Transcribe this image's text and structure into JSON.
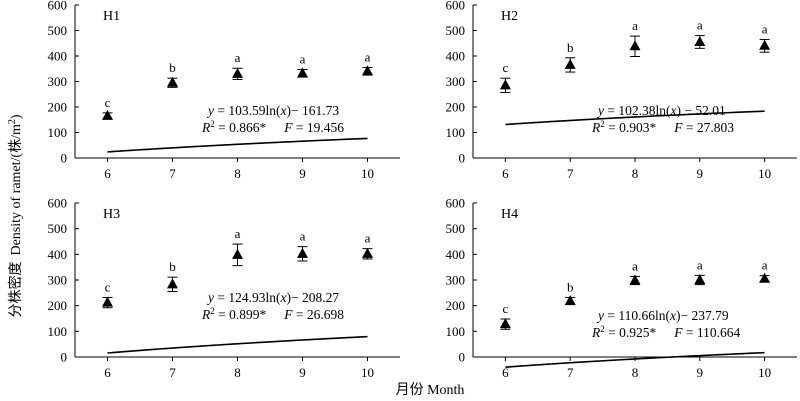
{
  "chart_data": [
    {
      "type": "scatter",
      "panel": "H1",
      "x": [
        6,
        7,
        8,
        9,
        10
      ],
      "values": [
        165,
        295,
        330,
        332,
        340
      ],
      "errors": [
        12,
        18,
        22,
        15,
        15
      ],
      "letters": [
        "c",
        "b",
        "a",
        "a",
        "a"
      ],
      "fit": {
        "a": 103.59,
        "b": -161.73
      },
      "equation": {
        "lead": "y",
        "body": " = 103.59ln(",
        "var": "x",
        "tail": ")− 161.73",
        "r2_label": "R",
        "r2_sup": "2",
        "r2_value": " = 0.866*",
        "f_label": "F",
        "f_value": " = 19.456"
      },
      "ylim": [
        0,
        600
      ],
      "xlim": [
        5.5,
        10.5
      ]
    },
    {
      "type": "scatter",
      "panel": "H2",
      "x": [
        6,
        7,
        8,
        9,
        10
      ],
      "values": [
        285,
        365,
        438,
        455,
        440
      ],
      "errors": [
        28,
        28,
        40,
        25,
        25
      ],
      "letters": [
        "c",
        "b",
        "a",
        "a",
        "a"
      ],
      "fit": {
        "a": 102.38,
        "b": -52.01
      },
      "equation": {
        "lead": "y",
        "body": " = 102.38ln(",
        "var": "x",
        "tail": ")  −  52.01",
        "r2_label": "R",
        "r2_sup": "2",
        "r2_value": " = 0.903*",
        "f_label": "F",
        "f_value": " = 27.803"
      },
      "ylim": [
        0,
        600
      ],
      "xlim": [
        5.5,
        10.5
      ]
    },
    {
      "type": "scatter",
      "panel": "H3",
      "x": [
        6,
        7,
        8,
        9,
        10
      ],
      "values": [
        212,
        283,
        398,
        402,
        402
      ],
      "errors": [
        20,
        28,
        42,
        28,
        20
      ],
      "letters": [
        "c",
        "b",
        "a",
        "a",
        "a"
      ],
      "fit": {
        "a": 124.93,
        "b": -208.27
      },
      "equation": {
        "lead": "y",
        "body": " = 124.93ln(",
        "var": "x",
        "tail": ")− 208.27",
        "r2_label": "R",
        "r2_sup": "2",
        "r2_value": " = 0.899*",
        "f_label": "F",
        "f_value": " = 26.698"
      },
      "ylim": [
        0,
        600
      ],
      "xlim": [
        5.5,
        10.5
      ]
    },
    {
      "type": "scatter",
      "panel": "H4",
      "x": [
        6,
        7,
        8,
        9,
        10
      ],
      "values": [
        128,
        218,
        298,
        300,
        305
      ],
      "errors": [
        20,
        14,
        16,
        18,
        12
      ],
      "letters": [
        "c",
        "b",
        "a",
        "a",
        "a"
      ],
      "fit": {
        "a": 110.66,
        "b": -237.79
      },
      "equation": {
        "lead": "y",
        "body": " = 110.66ln(",
        "var": "x",
        "tail": ")− 237.79",
        "r2_label": "R",
        "r2_sup": "2",
        "r2_value": " = 0.925*",
        "f_label": "F",
        "f_value": " = 110.664"
      },
      "ylim": [
        0,
        600
      ],
      "xlim": [
        5.5,
        10.5
      ]
    }
  ],
  "axes": {
    "ylabel_cn": "分株密度",
    "ylabel_en": "Density of ramet/(株/m",
    "ylabel_sup": "2",
    "ylabel_close": ")",
    "xlabel": "月份  Month",
    "yticks": [
      0,
      100,
      200,
      300,
      400,
      500,
      600
    ],
    "xticks": [
      6,
      7,
      8,
      9,
      10
    ]
  }
}
